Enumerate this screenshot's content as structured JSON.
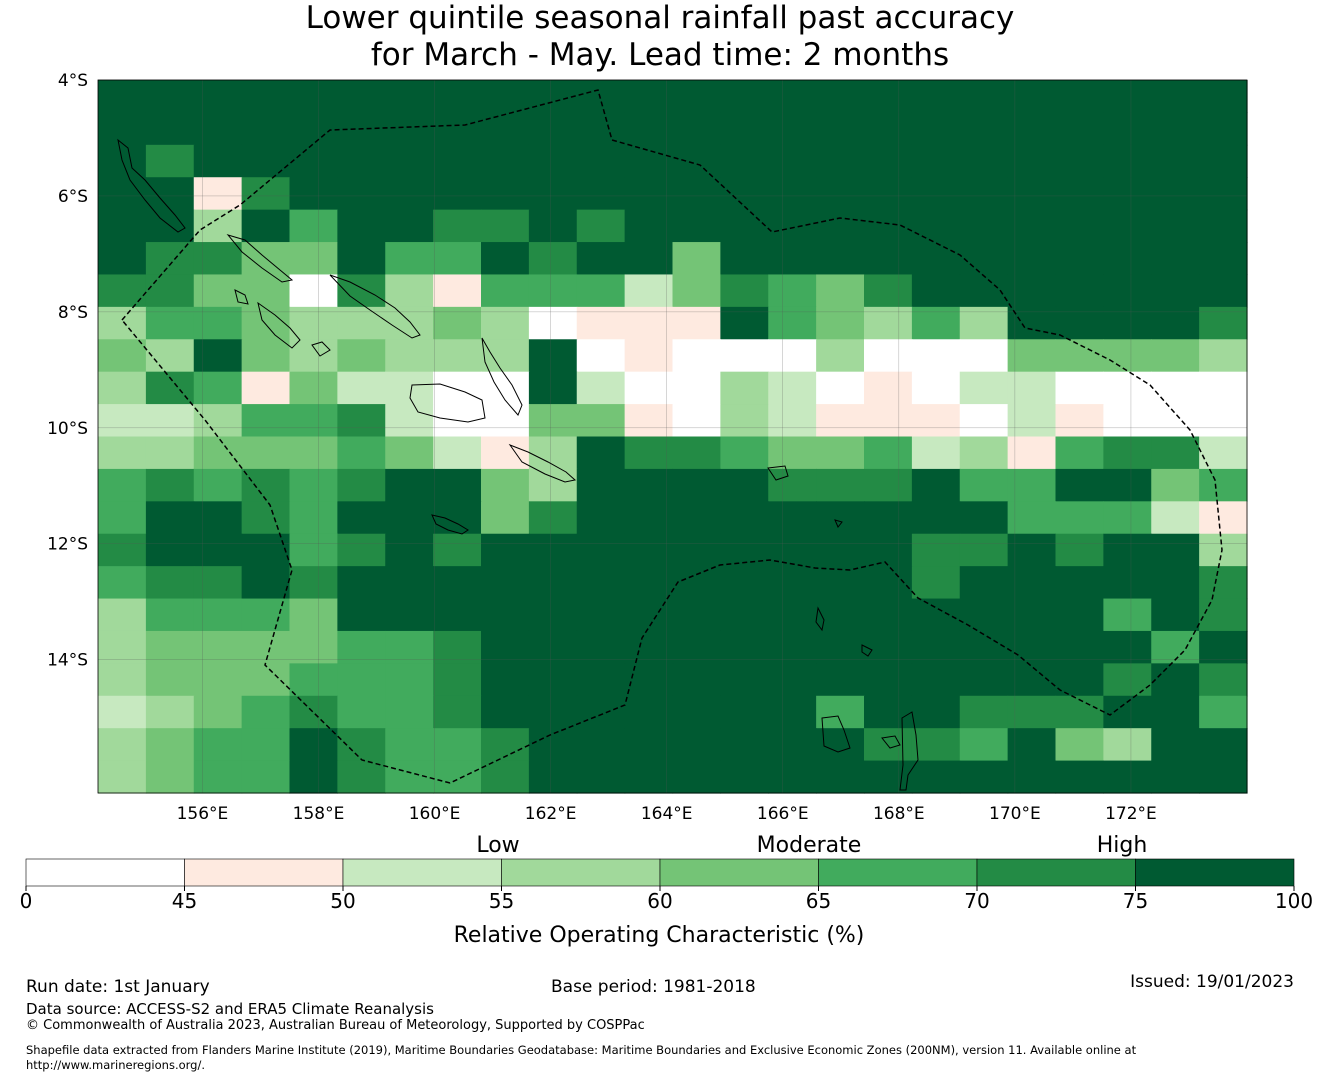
{
  "title": {
    "line1": "Lower quintile seasonal rainfall past accuracy",
    "line2": "for March - May. Lead time: 2 months"
  },
  "map": {
    "lat_labels": [
      "4°S",
      "6°S",
      "8°S",
      "10°S",
      "12°S",
      "14°S"
    ],
    "lon_labels": [
      "156°E",
      "158°E",
      "160°E",
      "162°E",
      "164°E",
      "166°E",
      "168°E",
      "170°E",
      "172°E"
    ],
    "lon_range": [
      154.2,
      174.0
    ],
    "lat_range": [
      -4.0,
      -16.3
    ],
    "cell_colors": [
      "#ffffff",
      "#feeae0",
      "#c7e9c0",
      "#a1d99b",
      "#74c476",
      "#41ab5d",
      "#238b45",
      "#005a32"
    ],
    "grid_rows_class": [
      [
        7,
        7,
        7,
        7,
        7,
        7,
        7,
        7,
        7,
        7,
        7,
        7,
        7,
        7,
        7,
        7,
        7,
        7,
        7,
        7,
        7,
        7,
        7,
        7
      ],
      [
        7,
        7,
        7,
        7,
        7,
        7,
        7,
        7,
        7,
        7,
        7,
        7,
        7,
        7,
        7,
        7,
        7,
        7,
        7,
        7,
        7,
        7,
        7,
        7
      ],
      [
        7,
        6,
        7,
        7,
        7,
        7,
        7,
        7,
        7,
        7,
        7,
        7,
        7,
        7,
        7,
        7,
        7,
        7,
        7,
        7,
        7,
        7,
        7,
        7
      ],
      [
        7,
        7,
        1,
        6,
        7,
        7,
        7,
        7,
        7,
        7,
        7,
        7,
        7,
        7,
        7,
        7,
        7,
        7,
        7,
        7,
        7,
        7,
        7,
        7
      ],
      [
        7,
        7,
        3,
        7,
        5,
        7,
        7,
        6,
        6,
        7,
        6,
        7,
        7,
        7,
        7,
        7,
        7,
        7,
        7,
        7,
        7,
        7,
        7,
        7
      ],
      [
        7,
        6,
        6,
        4,
        4,
        7,
        5,
        5,
        7,
        6,
        7,
        7,
        4,
        7,
        7,
        7,
        7,
        7,
        7,
        7,
        7,
        7,
        7,
        7
      ],
      [
        6,
        6,
        4,
        4,
        0,
        6,
        3,
        1,
        5,
        5,
        5,
        2,
        4,
        6,
        5,
        4,
        6,
        7,
        7,
        7,
        7,
        7,
        7,
        7
      ],
      [
        3,
        5,
        5,
        4,
        3,
        3,
        3,
        4,
        3,
        0,
        1,
        1,
        1,
        7,
        5,
        4,
        3,
        5,
        3,
        7,
        7,
        7,
        7,
        6
      ],
      [
        4,
        3,
        7,
        4,
        3,
        4,
        3,
        3,
        3,
        7,
        0,
        1,
        0,
        0,
        0,
        3,
        0,
        0,
        0,
        4,
        4,
        4,
        4,
        3
      ],
      [
        3,
        6,
        5,
        1,
        4,
        2,
        2,
        0,
        0,
        7,
        2,
        0,
        0,
        3,
        2,
        0,
        1,
        0,
        2,
        2,
        0,
        0,
        0,
        0
      ],
      [
        2,
        2,
        3,
        5,
        5,
        6,
        2,
        0,
        0,
        4,
        4,
        1,
        0,
        3,
        2,
        1,
        1,
        1,
        0,
        2,
        1,
        0,
        0,
        0
      ],
      [
        3,
        3,
        4,
        4,
        4,
        5,
        4,
        2,
        1,
        3,
        7,
        6,
        6,
        5,
        4,
        4,
        5,
        2,
        3,
        1,
        5,
        6,
        6,
        2
      ],
      [
        5,
        6,
        5,
        6,
        5,
        6,
        7,
        7,
        4,
        3,
        7,
        7,
        7,
        7,
        6,
        6,
        6,
        7,
        5,
        5,
        7,
        7,
        4,
        5
      ],
      [
        5,
        7,
        7,
        6,
        5,
        7,
        7,
        7,
        4,
        6,
        7,
        7,
        7,
        7,
        7,
        7,
        7,
        7,
        7,
        5,
        5,
        5,
        2,
        1
      ],
      [
        6,
        7,
        7,
        7,
        5,
        6,
        7,
        6,
        7,
        7,
        7,
        7,
        7,
        7,
        7,
        7,
        7,
        6,
        6,
        7,
        6,
        7,
        7,
        3
      ],
      [
        5,
        6,
        6,
        7,
        6,
        7,
        7,
        7,
        7,
        7,
        7,
        7,
        7,
        7,
        7,
        7,
        7,
        6,
        7,
        7,
        7,
        7,
        7,
        6
      ],
      [
        3,
        5,
        5,
        5,
        4,
        7,
        7,
        7,
        7,
        7,
        7,
        7,
        7,
        7,
        7,
        7,
        7,
        7,
        7,
        7,
        7,
        5,
        7,
        6
      ],
      [
        3,
        4,
        4,
        4,
        4,
        5,
        5,
        6,
        7,
        7,
        7,
        7,
        7,
        7,
        7,
        7,
        7,
        7,
        7,
        7,
        7,
        7,
        5,
        7
      ],
      [
        3,
        4,
        4,
        4,
        5,
        5,
        5,
        6,
        7,
        7,
        7,
        7,
        7,
        7,
        7,
        7,
        7,
        7,
        7,
        7,
        7,
        6,
        7,
        6
      ],
      [
        2,
        3,
        4,
        5,
        6,
        5,
        5,
        6,
        7,
        7,
        7,
        7,
        7,
        7,
        7,
        5,
        7,
        7,
        6,
        6,
        6,
        7,
        7,
        5
      ],
      [
        3,
        4,
        5,
        5,
        7,
        6,
        5,
        5,
        6,
        7,
        7,
        7,
        7,
        7,
        7,
        7,
        6,
        6,
        5,
        7,
        4,
        3,
        7,
        7
      ],
      [
        3,
        4,
        5,
        5,
        7,
        6,
        5,
        5,
        6,
        7,
        7,
        7,
        7,
        7,
        7,
        7,
        7,
        7,
        7,
        7,
        7,
        7,
        7,
        7
      ]
    ]
  },
  "legend": {
    "category_low": "Low",
    "category_moderate": "Moderate",
    "category_high": "High",
    "tick_labels": [
      "0",
      "45",
      "50",
      "55",
      "60",
      "65",
      "70",
      "75",
      "100"
    ],
    "label": "Relative Operating Characteristic (%)"
  },
  "footer": {
    "run_date": "Run date: 1st January",
    "base_period": "Base period: 1981-2018",
    "issued": "Issued: 19/01/2023",
    "data_source": "Data source: ACCESS-S2 and ERA5 Climate Reanalysis",
    "copyright": "© Commonwealth of Australia 2023, Australian Bureau of Meteorology, Supported by COSPPac",
    "shapefile_line1": "Shapefile data extracted from Flanders Marine Institute (2019), Maritime Boundaries Geodatabase: Maritime Boundaries and Exclusive Economic Zones (200NM), version 11. Available online at",
    "shapefile_line2": "http://www.marineregions.org/."
  }
}
